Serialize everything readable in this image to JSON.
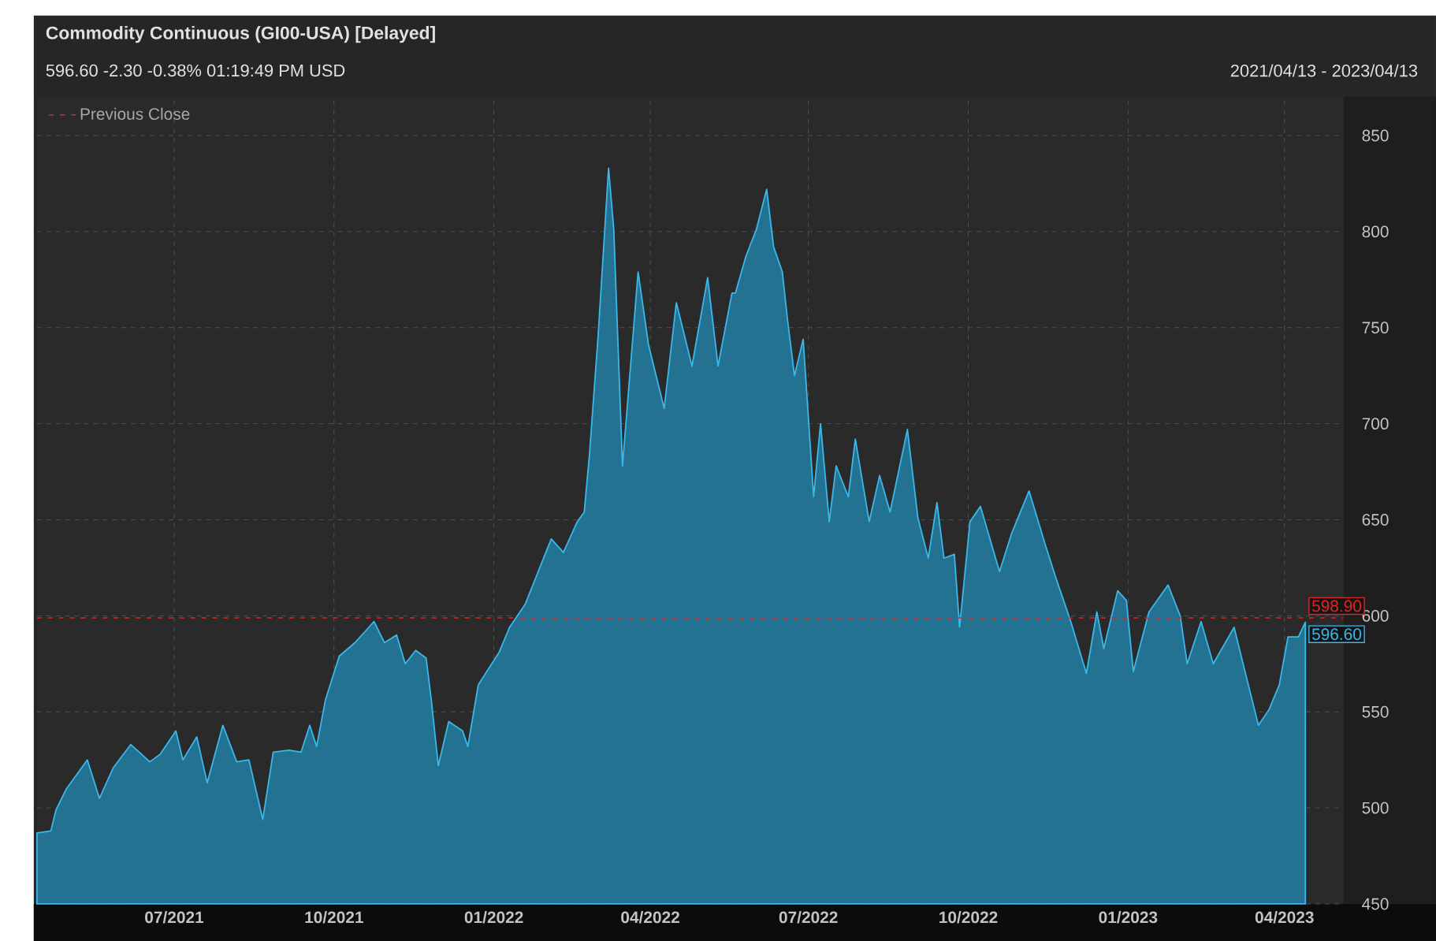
{
  "chart_data": {
    "type": "area",
    "title": "Commodity Continuous (GI00-USA) [Delayed]",
    "subtitle": "596.60 -2.30 -0.38% 01:19:49 PM USD",
    "annotations": [
      "2021/04/13 - 2023/04/13",
      {
        "text": "598.90",
        "x": "2023-04-13",
        "y": 598.9
      },
      {
        "text": "596.60",
        "x": "2023-04-13",
        "y": 596.6
      }
    ],
    "series": [
      {
        "color": "#3ab8ec",
        "x": [
          "2021-04-13",
          "2021-04-21",
          "2021-04-24",
          "2021-04-30",
          "2021-05-12",
          "2021-05-19",
          "2021-05-27",
          "2021-06-06",
          "2021-06-17",
          "2021-06-23",
          "2021-07-02",
          "2021-07-06",
          "2021-07-14",
          "2021-07-20",
          "2021-07-29",
          "2021-08-06",
          "2021-08-13",
          "2021-08-21",
          "2021-08-27",
          "2021-09-05",
          "2021-09-12",
          "2021-09-17",
          "2021-09-21",
          "2021-09-26",
          "2021-10-04",
          "2021-10-13",
          "2021-10-21",
          "2021-10-24",
          "2021-10-30",
          "2021-11-06",
          "2021-11-11",
          "2021-11-17",
          "2021-11-23",
          "2021-11-26",
          "2021-11-30",
          "2021-12-06",
          "2021-12-14",
          "2021-12-17",
          "2021-12-23",
          "2022-01-04",
          "2022-01-10",
          "2022-01-19",
          "2022-02-03",
          "2022-02-10",
          "2022-02-18",
          "2022-02-22",
          "2022-02-25",
          "2022-03-02",
          "2022-03-08",
          "2022-03-11",
          "2022-03-16",
          "2022-03-25",
          "2022-03-31",
          "2022-04-09",
          "2022-04-16",
          "2022-04-25",
          "2022-05-04",
          "2022-05-10",
          "2022-05-18",
          "2022-05-20",
          "2022-05-26",
          "2022-06-01",
          "2022-06-07",
          "2022-06-11",
          "2022-06-16",
          "2022-06-19",
          "2022-06-23",
          "2022-06-28",
          "2022-07-04",
          "2022-07-08",
          "2022-07-13",
          "2022-07-17",
          "2022-07-24",
          "2022-07-28",
          "2022-08-05",
          "2022-08-11",
          "2022-08-17",
          "2022-08-27",
          "2022-09-02",
          "2022-09-08",
          "2022-09-13",
          "2022-09-17",
          "2022-09-23",
          "2022-09-26",
          "2022-10-02",
          "2022-10-08",
          "2022-10-19",
          "2022-10-26",
          "2022-11-05",
          "2022-11-14",
          "2022-11-20",
          "2022-11-29",
          "2022-12-08",
          "2022-12-14",
          "2022-12-18",
          "2022-12-26",
          "2022-12-31",
          "2023-01-04",
          "2023-01-13",
          "2023-01-24",
          "2023-01-31",
          "2023-02-04",
          "2023-02-12",
          "2023-02-19",
          "2023-03-03",
          "2023-03-09",
          "2023-03-17",
          "2023-03-23",
          "2023-03-29",
          "2023-04-03",
          "2023-04-09",
          "2023-04-13"
        ],
        "values": [
          487,
          488,
          499,
          510,
          525,
          505,
          521,
          533,
          524,
          528,
          540,
          525,
          537,
          513,
          543,
          524,
          525,
          494,
          529,
          530,
          529,
          543,
          532,
          556,
          579,
          586,
          594,
          597,
          586,
          590,
          575,
          582,
          578,
          556,
          522,
          545,
          540,
          532,
          564,
          581,
          594,
          606,
          640,
          633,
          649,
          654,
          684,
          746,
          833,
          801,
          678,
          779,
          741,
          708,
          763,
          730,
          776,
          730,
          768,
          768,
          787,
          801,
          822,
          792,
          779,
          754,
          725,
          744,
          662,
          700,
          649,
          678,
          662,
          692,
          649,
          673,
          654,
          697,
          651,
          630,
          659,
          630,
          632,
          594,
          649,
          657,
          623,
          643,
          665,
          638,
          621,
          597,
          570,
          602,
          583,
          613,
          608,
          571,
          602,
          616,
          600,
          575,
          597,
          575,
          594,
          572,
          543,
          551,
          564,
          589,
          589,
          596.6
        ]
      }
    ],
    "xlim": [
      "2021-04-13",
      "2023-05-05"
    ],
    "xticks": [
      {
        "value": "2021-07-01",
        "label": "07/2021"
      },
      {
        "value": "2021-10-01",
        "label": "10/2021"
      },
      {
        "value": "2022-01-01",
        "label": "01/2022"
      },
      {
        "value": "2022-04-01",
        "label": "04/2022"
      },
      {
        "value": "2022-07-01",
        "label": "07/2022"
      },
      {
        "value": "2022-10-01",
        "label": "10/2022"
      },
      {
        "value": "2023-01-01",
        "label": "01/2023"
      },
      {
        "value": "2023-04-01",
        "label": "04/2023"
      }
    ],
    "ylim": [
      450,
      870
    ],
    "yticks": [
      450,
      500,
      550,
      600,
      650,
      700,
      750,
      800,
      850
    ],
    "ref_lines": [
      {
        "axis": "y",
        "value": 598.9,
        "label": "Previous Close",
        "color": "#e02424",
        "line_style": "dashed"
      }
    ],
    "grid": true,
    "legend": "top left",
    "marker": "none"
  }
}
